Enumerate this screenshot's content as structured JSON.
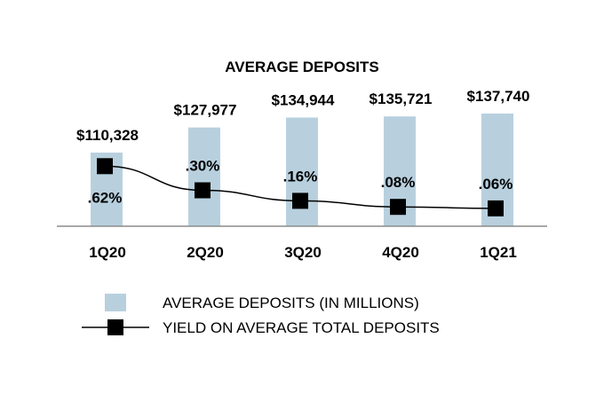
{
  "chart_data": {
    "type": "bar",
    "title": "AVERAGE DEPOSITS",
    "categories": [
      "1Q20",
      "2Q20",
      "3Q20",
      "4Q20",
      "1Q21"
    ],
    "series": [
      {
        "name": "AVERAGE DEPOSITS (IN MILLIONS)",
        "type": "bar",
        "values": [
          110328,
          127977,
          134944,
          135721,
          137740
        ],
        "labels": [
          "$110,328",
          "$127,977",
          "$134,944",
          "$135,721",
          "$137,740"
        ],
        "color": "#b8d0de"
      },
      {
        "name": "YIELD ON AVERAGE TOTAL DEPOSITS",
        "type": "line",
        "values": [
          0.62,
          0.3,
          0.16,
          0.08,
          0.06
        ],
        "labels": [
          ".62%",
          ".30%",
          ".16%",
          ".08%",
          ".06%"
        ],
        "color": "#000000"
      }
    ],
    "grid": false,
    "legend_position": "bottom"
  }
}
